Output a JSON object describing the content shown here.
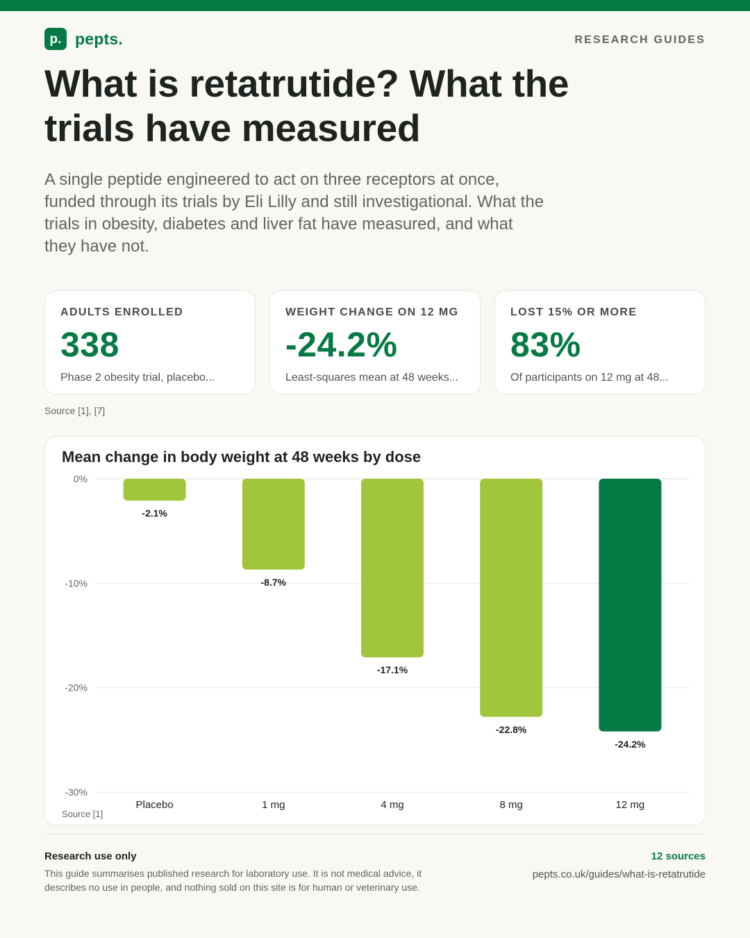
{
  "brand": {
    "logo_mark": "p.",
    "name": "pepts.",
    "accent": "#067a44"
  },
  "section_label": "RESEARCH GUIDES",
  "title": "What is retatrutide? What the trials have measured",
  "intro": "A single peptide engineered to act on three receptors at once, funded through its trials by Eli Lilly and still investigational. What the trials in obesity, diabetes and liver fat have measured, and what they have not.",
  "stats": [
    {
      "label": "ADULTS ENROLLED",
      "value": "338",
      "note": "Phase 2 obesity trial, placebo..."
    },
    {
      "label": "WEIGHT CHANGE ON 12 MG",
      "value": "-24.2%",
      "note": "Least-squares mean at 48 weeks..."
    },
    {
      "label": "LOST 15% OR MORE",
      "value": "83%",
      "note": "Of participants on 12 mg at 48..."
    }
  ],
  "stats_source": "Source [1], [7]",
  "chart_data": {
    "type": "bar",
    "title": "Mean change in body weight at 48 weeks by dose",
    "categories": [
      "Placebo",
      "1 mg",
      "4 mg",
      "8 mg",
      "12 mg"
    ],
    "values": [
      -2.1,
      -8.7,
      -17.1,
      -22.8,
      -24.2
    ],
    "value_labels": [
      "-2.1%",
      "-8.7%",
      "-17.1%",
      "-22.8%",
      "-24.2%"
    ],
    "ylim": [
      -30,
      0
    ],
    "yticks": [
      0,
      -10,
      -20,
      -30
    ],
    "ytick_labels": [
      "0%",
      "-10%",
      "-20%",
      "-30%"
    ],
    "grid": true,
    "colors": [
      "#a1c63b",
      "#a1c63b",
      "#a1c63b",
      "#a1c63b",
      "#067a44"
    ],
    "source": "Source [1]"
  },
  "footer": {
    "heading": "Research use only",
    "text": "This guide summarises published research for laboratory use. It is not medical advice, it describes no use in people, and nothing sold on this site is for human or veterinary use.",
    "sources": "12 sources",
    "url": "pepts.co.uk/guides/what-is-retatrutide"
  }
}
